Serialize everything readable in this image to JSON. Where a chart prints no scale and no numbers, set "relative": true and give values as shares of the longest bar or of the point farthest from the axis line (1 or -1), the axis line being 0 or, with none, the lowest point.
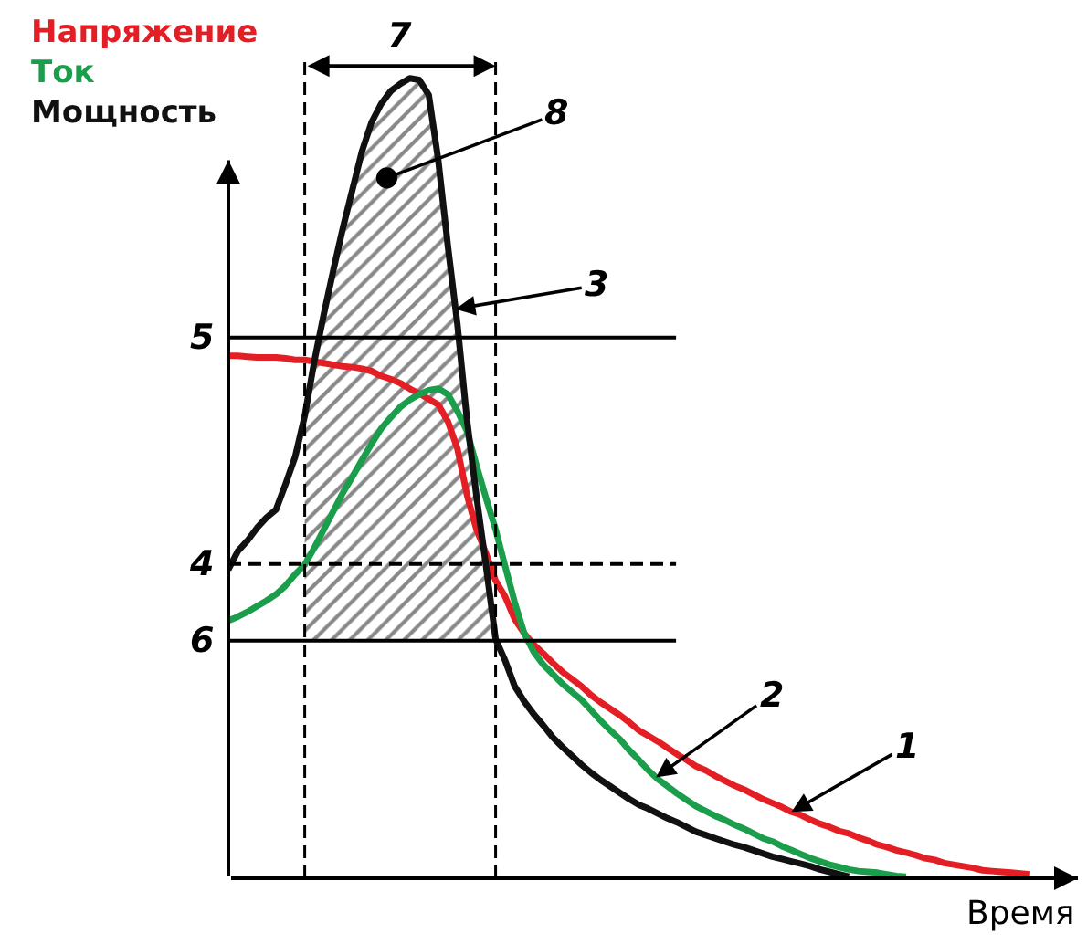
{
  "chart_data": {
    "type": "line",
    "relative": true,
    "legend": "top left",
    "xlabel": "Время",
    "categories": [
      null,
      null,
      null,
      null,
      null,
      null,
      null,
      null,
      null,
      null,
      null,
      null,
      null,
      null,
      null,
      null,
      null,
      null,
      null,
      null,
      null,
      null,
      null,
      null,
      null,
      null,
      null,
      null,
      null,
      null,
      null,
      null,
      null,
      null,
      null,
      null,
      null,
      null,
      null,
      null,
      null,
      null,
      null,
      null,
      null,
      null,
      null,
      null,
      null,
      null,
      null,
      null,
      null,
      null,
      null,
      null,
      null,
      null,
      null,
      null,
      null,
      null,
      null,
      null,
      null,
      null,
      null,
      null,
      null,
      null,
      null,
      null,
      null,
      null,
      null,
      null,
      null,
      null,
      null,
      null,
      null,
      null,
      null,
      null,
      null,
      null,
      null,
      null,
      null,
      null
    ],
    "series": [
      {
        "name": "Напряжение",
        "color": "#e31e24",
        "values": [
          0.653,
          0.653,
          0.652,
          0.651,
          0.651,
          0.651,
          0.65,
          0.648,
          0.648,
          0.646,
          0.644,
          0.642,
          0.64,
          0.639,
          0.637,
          0.634,
          0.628,
          0.624,
          0.619,
          0.612,
          0.606,
          0.599,
          0.592,
          0.571,
          0.537,
          0.479,
          0.436,
          0.406,
          0.372,
          0.352,
          0.324,
          0.306,
          0.292,
          0.281,
          0.269,
          0.258,
          0.249,
          0.24,
          0.229,
          0.22,
          0.212,
          0.204,
          0.195,
          0.185,
          0.178,
          0.171,
          0.163,
          0.155,
          0.148,
          0.14,
          0.135,
          0.128,
          0.122,
          0.116,
          0.111,
          0.105,
          0.099,
          0.094,
          0.089,
          0.083,
          0.079,
          0.073,
          0.068,
          0.064,
          0.059,
          0.056,
          0.051,
          0.047,
          0.042,
          0.039,
          0.035,
          0.032,
          0.029,
          0.025,
          0.023,
          0.019,
          0.017,
          0.015,
          0.013,
          0.01,
          0.009,
          0.008,
          0.007,
          0.006,
          0.005,
          null,
          null,
          null,
          null,
          null
        ]
      },
      {
        "name": "Ток",
        "color": "#1b9e4b",
        "values": [
          0.322,
          0.327,
          0.333,
          0.34,
          0.347,
          0.355,
          0.366,
          0.38,
          0.392,
          0.413,
          0.436,
          0.459,
          0.482,
          0.502,
          0.523,
          0.543,
          0.562,
          0.576,
          0.589,
          0.598,
          0.605,
          0.61,
          0.612,
          0.605,
          0.584,
          0.559,
          0.516,
          0.475,
          0.436,
          0.39,
          0.345,
          0.306,
          0.283,
          0.267,
          0.255,
          0.243,
          0.233,
          0.223,
          0.21,
          0.197,
          0.185,
          0.174,
          0.16,
          0.148,
          0.135,
          0.124,
          0.115,
          0.106,
          0.098,
          0.09,
          0.084,
          0.078,
          0.073,
          0.067,
          0.062,
          0.056,
          0.05,
          0.046,
          0.04,
          0.035,
          0.03,
          0.025,
          0.021,
          0.017,
          0.014,
          0.011,
          0.009,
          0.008,
          0.007,
          0.005,
          0.003,
          0.002,
          null,
          null,
          null,
          null,
          null,
          null,
          null,
          null,
          null,
          null,
          null,
          null,
          null,
          null,
          null,
          null,
          null,
          null
        ]
      },
      {
        "name": "Мощность",
        "color": "#111111",
        "values": [
          0.386,
          0.409,
          0.422,
          0.438,
          0.451,
          0.461,
          0.493,
          0.527,
          0.578,
          0.646,
          0.705,
          0.76,
          0.813,
          0.861,
          0.909,
          0.945,
          0.968,
          0.984,
          0.993,
          1.0,
          0.998,
          0.979,
          0.897,
          0.79,
          0.692,
          0.573,
          0.477,
          0.39,
          0.299,
          0.272,
          0.24,
          0.221,
          0.205,
          0.191,
          0.176,
          0.164,
          0.153,
          0.142,
          0.132,
          0.123,
          0.115,
          0.107,
          0.099,
          0.092,
          0.087,
          0.081,
          0.075,
          0.07,
          0.064,
          0.058,
          0.054,
          0.05,
          0.046,
          0.042,
          0.039,
          0.035,
          0.031,
          0.027,
          0.024,
          0.021,
          0.018,
          0.015,
          0.011,
          0.008,
          0.005,
          0.002,
          null,
          null,
          null,
          null,
          null,
          null,
          null,
          null,
          null,
          null,
          null,
          null,
          null,
          null,
          null,
          null,
          null,
          null,
          null,
          null,
          null,
          null,
          null,
          null
        ],
        "lower": [
          null,
          null,
          null,
          null,
          null,
          null,
          null,
          null,
          0.297,
          0.297,
          0.297,
          0.297,
          0.297,
          0.297,
          0.297,
          0.297,
          0.297,
          0.297,
          0.297,
          0.297,
          0.297,
          0.297,
          0.297,
          0.297,
          0.297,
          0.297,
          0.297,
          0.297,
          0.297,
          null,
          null,
          null,
          null,
          null,
          null,
          null,
          null,
          null,
          null,
          null,
          null,
          null,
          null,
          null,
          null,
          null,
          null,
          null,
          null,
          null,
          null,
          null,
          null,
          null,
          null,
          null,
          null,
          null,
          null,
          null,
          null,
          null,
          null,
          null,
          null,
          null,
          null,
          null,
          null,
          null,
          null,
          null,
          null,
          null,
          null,
          null,
          null,
          null,
          null,
          null,
          null,
          null,
          null,
          null,
          null,
          null,
          null,
          null,
          null,
          null
        ],
        "upper": [
          null,
          null,
          null,
          null,
          null,
          null,
          null,
          null,
          0.578,
          0.646,
          0.705,
          0.76,
          0.813,
          0.861,
          0.909,
          0.945,
          0.968,
          0.984,
          0.993,
          1.0,
          0.998,
          0.979,
          0.897,
          0.79,
          0.692,
          0.573,
          0.477,
          0.39,
          0.299,
          null,
          null,
          null,
          null,
          null,
          null,
          null,
          null,
          null,
          null,
          null,
          null,
          null,
          null,
          null,
          null,
          null,
          null,
          null,
          null,
          null,
          null,
          null,
          null,
          null,
          null,
          null,
          null,
          null,
          null,
          null,
          null,
          null,
          null,
          null,
          null,
          null,
          null,
          null,
          null,
          null,
          null,
          null,
          null,
          null,
          null,
          null,
          null,
          null,
          null,
          null,
          null,
          null,
          null,
          null,
          null,
          null,
          null,
          null,
          null,
          null
        ]
      }
    ],
    "ref_lines": [
      {
        "axis": "y",
        "value": 0.676
      },
      {
        "axis": "y",
        "value": 0.393,
        "line_style": "dashed"
      },
      {
        "axis": "y",
        "value": 0.297
      }
    ],
    "annotations": [
      "7",
      "8",
      "3",
      "5",
      "4",
      "6",
      "2",
      "1"
    ]
  }
}
